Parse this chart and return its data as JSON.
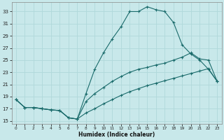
{
  "xlabel": "Humidex (Indice chaleur)",
  "bg_color": "#c8e8ea",
  "grid_color": "#b0d8da",
  "line_color": "#1a6b6b",
  "xlim": [
    -0.5,
    23.5
  ],
  "ylim": [
    14.5,
    34.5
  ],
  "xticks": [
    0,
    1,
    2,
    3,
    4,
    5,
    6,
    7,
    8,
    9,
    10,
    11,
    12,
    13,
    14,
    15,
    16,
    17,
    18,
    19,
    20,
    21,
    22,
    23
  ],
  "yticks": [
    15,
    17,
    19,
    21,
    23,
    25,
    27,
    29,
    31,
    33
  ],
  "line1_x": [
    0,
    1,
    2,
    3,
    4,
    5,
    6,
    7,
    8,
    9,
    10,
    11,
    12,
    13,
    14,
    15,
    16,
    17,
    18,
    19,
    20,
    21,
    22,
    23
  ],
  "line1_y": [
    18.5,
    17.2,
    17.2,
    17.0,
    16.8,
    16.7,
    15.5,
    15.3,
    19.5,
    23.5,
    26.2,
    28.5,
    30.5,
    33.0,
    33.0,
    33.8,
    33.3,
    33.0,
    31.2,
    27.5,
    26.0,
    25.0,
    23.5,
    21.5
  ],
  "line2_x": [
    0,
    1,
    2,
    3,
    4,
    5,
    6,
    7,
    8,
    9,
    10,
    11,
    12,
    13,
    14,
    15,
    16,
    17,
    18,
    19,
    20,
    21,
    22,
    23
  ],
  "line2_y": [
    18.5,
    17.2,
    17.2,
    17.0,
    16.8,
    16.7,
    15.5,
    15.3,
    18.2,
    19.5,
    20.5,
    21.5,
    22.3,
    23.0,
    23.5,
    23.8,
    24.2,
    24.5,
    25.0,
    25.5,
    26.2,
    25.2,
    25.0,
    21.5
  ],
  "line3_x": [
    0,
    1,
    2,
    3,
    4,
    5,
    6,
    7,
    8,
    9,
    10,
    11,
    12,
    13,
    14,
    15,
    16,
    17,
    18,
    19,
    20,
    21,
    22,
    23
  ],
  "line3_y": [
    18.5,
    17.2,
    17.2,
    17.0,
    16.8,
    16.7,
    15.5,
    15.3,
    16.3,
    17.0,
    17.8,
    18.5,
    19.2,
    19.8,
    20.3,
    20.8,
    21.2,
    21.6,
    22.0,
    22.4,
    22.8,
    23.2,
    23.6,
    21.5
  ]
}
